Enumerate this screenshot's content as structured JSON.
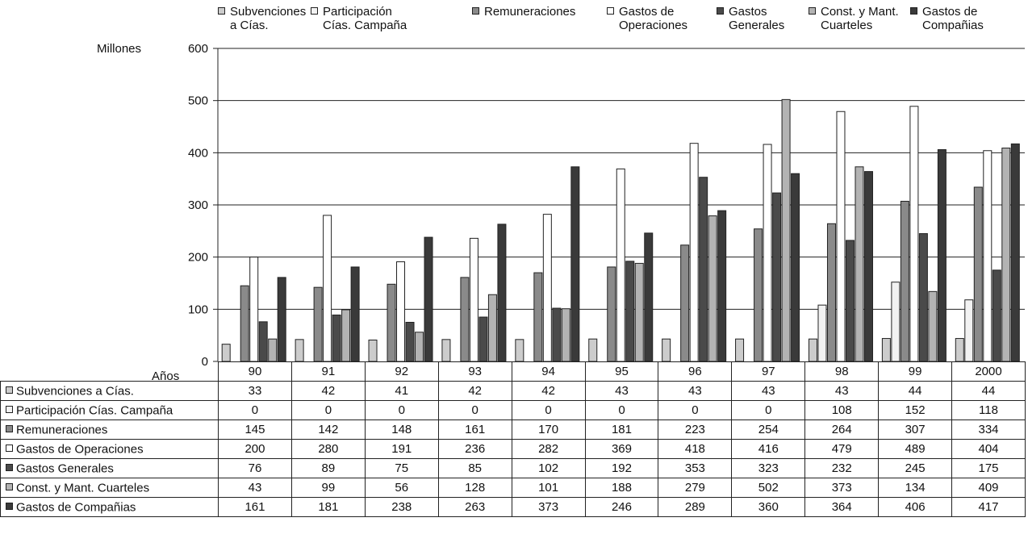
{
  "chart_data": {
    "type": "bar",
    "ylabel": "Millones",
    "xlabel": "Años",
    "ylim": [
      0,
      600
    ],
    "yticks": [
      0,
      100,
      200,
      300,
      400,
      500,
      600
    ],
    "grid": true,
    "legend_position": "top",
    "categories": [
      "90",
      "91",
      "92",
      "93",
      "94",
      "95",
      "96",
      "97",
      "98",
      "99",
      "2000"
    ],
    "series": [
      {
        "name": "Subvenciones a Cías.",
        "legend_label": "Subvenciones\na Cías.",
        "color": "#cccccc",
        "values": [
          33,
          42,
          41,
          42,
          42,
          43,
          43,
          43,
          43,
          44,
          44
        ]
      },
      {
        "name": "Participación Cías. Campaña",
        "legend_label": "Participación\nCías. Campaña",
        "color": "#f2f2f2",
        "values": [
          0,
          0,
          0,
          0,
          0,
          0,
          0,
          0,
          108,
          152,
          118
        ]
      },
      {
        "name": "Remuneraciones",
        "legend_label": "Remuneraciones",
        "color": "#8a8a8a",
        "values": [
          145,
          142,
          148,
          161,
          170,
          181,
          223,
          254,
          264,
          307,
          334
        ]
      },
      {
        "name": "Gastos de Operaciones",
        "legend_label": "Gastos de\nOperaciones",
        "color": "#ffffff",
        "values": [
          200,
          280,
          191,
          236,
          282,
          369,
          418,
          416,
          479,
          489,
          404
        ]
      },
      {
        "name": "Gastos Generales",
        "legend_label": "Gastos\nGenerales",
        "color": "#4a4a4a",
        "values": [
          76,
          89,
          75,
          85,
          102,
          192,
          353,
          323,
          232,
          245,
          175
        ]
      },
      {
        "name": "Const. y Mant. Cuarteles",
        "legend_label": "Const. y Mant.\nCuarteles",
        "color": "#b3b3b3",
        "values": [
          43,
          99,
          56,
          128,
          101,
          188,
          279,
          502,
          373,
          134,
          409
        ]
      },
      {
        "name": "Gastos de Compañias",
        "legend_label": "Gastos de\nCompañias",
        "color": "#3a3a3a",
        "values": [
          161,
          181,
          238,
          263,
          373,
          246,
          289,
          360,
          364,
          406,
          417
        ]
      }
    ]
  }
}
